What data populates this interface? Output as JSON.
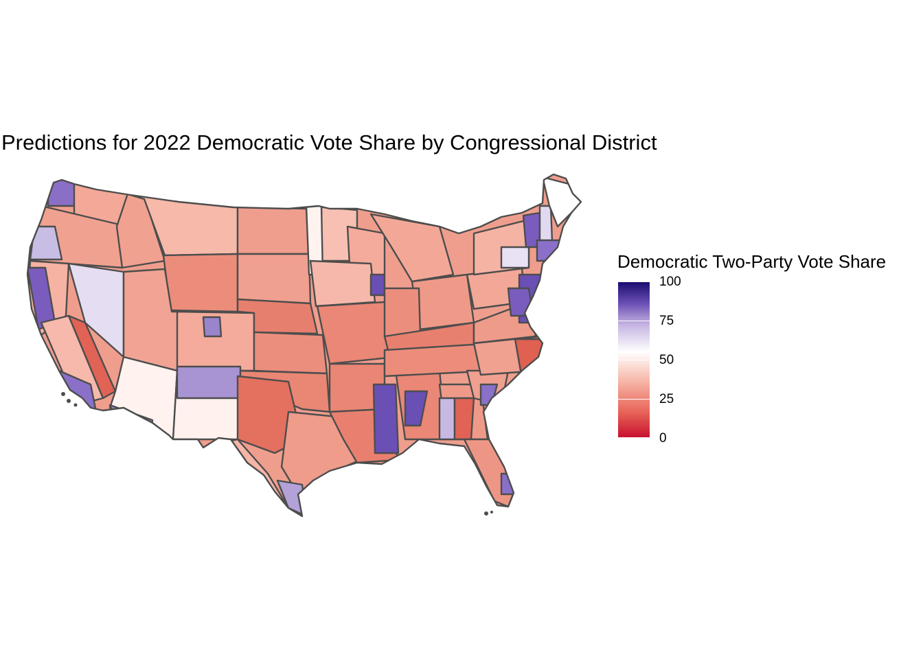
{
  "title": "Predictions for 2022 Democratic Vote Share by Congressional District",
  "legend": {
    "title": "Democratic Two-Party Vote Share",
    "ticks": [
      "100",
      "75",
      "50",
      "25",
      "0"
    ],
    "tick_values": [
      100,
      75,
      50,
      25,
      0
    ],
    "min": 0,
    "max": 100,
    "colors": {
      "low": "#c8102e",
      "mid": "#ffffff",
      "high": "#1a0a6e"
    }
  },
  "map": {
    "region": "contiguous-united-states",
    "unit": "congressional-district",
    "border_color": "#4d4d4d"
  }
}
